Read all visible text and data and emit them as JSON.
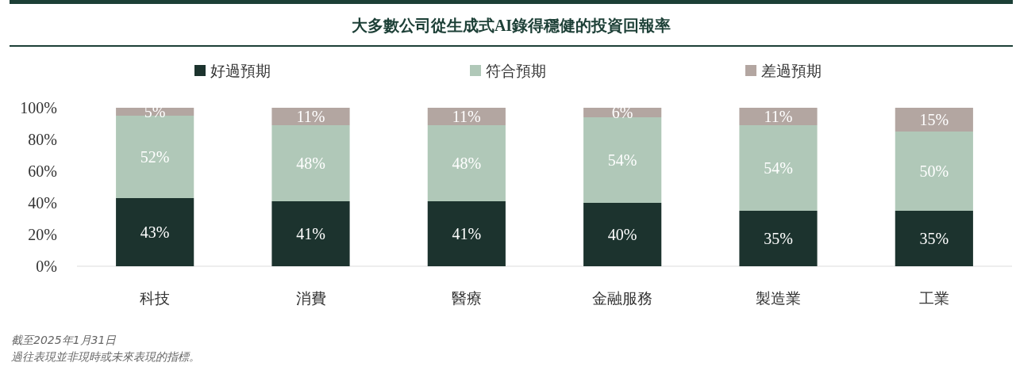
{
  "chart_data": {
    "type": "bar",
    "title": "大多數公司從生成式AI錄得穩健的投資回報率",
    "categories": [
      "科技",
      "消費",
      "醫療",
      "金融服務",
      "製造業",
      "工業"
    ],
    "series": [
      {
        "name": "好過預期",
        "color": "#1c332e",
        "values": [
          43,
          41,
          41,
          40,
          35,
          35
        ],
        "value_labels": [
          "43%",
          "41%",
          "41%",
          "40%",
          "35%",
          "35%"
        ]
      },
      {
        "name": "符合預期",
        "color": "#b0c8b8",
        "values": [
          52,
          48,
          48,
          54,
          54,
          50
        ],
        "value_labels": [
          "52%",
          "48%",
          "48%",
          "54%",
          "54%",
          "50%"
        ]
      },
      {
        "name": "差過預期",
        "color": "#b3a6a1",
        "values": [
          5,
          11,
          11,
          6,
          11,
          15
        ],
        "value_labels": [
          "5%",
          "11%",
          "11%",
          "6%",
          "11%",
          "15%"
        ]
      }
    ],
    "stacked": true,
    "ylim": [
      0,
      100
    ],
    "yticks": [
      {
        "value": 0,
        "label": "0%"
      },
      {
        "value": 20,
        "label": "20%"
      },
      {
        "value": 40,
        "label": "40%"
      },
      {
        "value": 60,
        "label": "60%"
      },
      {
        "value": 80,
        "label": "80%"
      },
      {
        "value": 100,
        "label": "100%"
      }
    ],
    "legend": "top",
    "annotations": [
      "截至2025年1月31日",
      "過往表現並非現時或未來表現的指標。"
    ]
  }
}
